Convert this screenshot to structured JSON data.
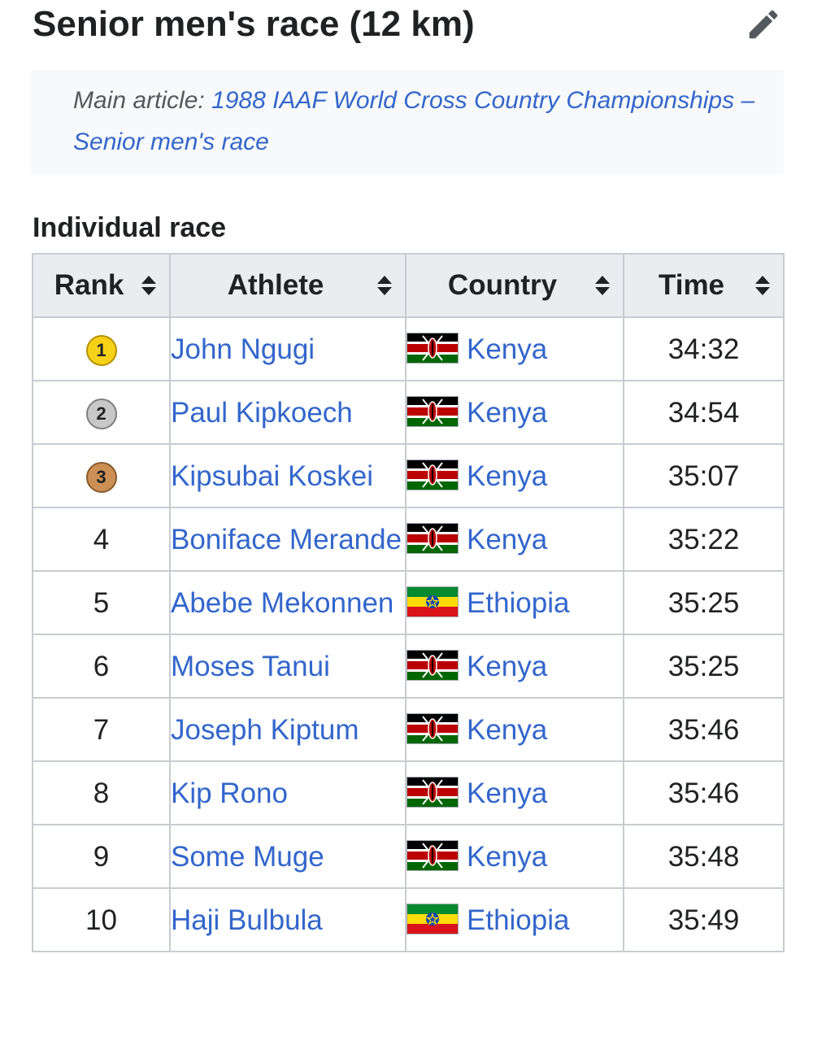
{
  "section": {
    "title": "Senior men's race (12 km)",
    "edit_icon": "pencil-icon"
  },
  "hatnote": {
    "prefix": "Main article:",
    "link_text": "1988 IAAF World Cross Country Championships – Senior men's race"
  },
  "subsection": {
    "title": "Individual race"
  },
  "table": {
    "columns": [
      "Rank",
      "Athlete",
      "Country",
      "Time"
    ],
    "sort_icon": "sort-updown-icon",
    "rows": [
      {
        "rank": "1",
        "medal": "gold",
        "athlete": "John Ngugi",
        "country": "Kenya",
        "flag": "kenya-flag-icon",
        "time": "34:32"
      },
      {
        "rank": "2",
        "medal": "silver",
        "athlete": "Paul Kipkoech",
        "country": "Kenya",
        "flag": "kenya-flag-icon",
        "time": "34:54"
      },
      {
        "rank": "3",
        "medal": "bronze",
        "athlete": "Kipsubai Koskei",
        "country": "Kenya",
        "flag": "kenya-flag-icon",
        "time": "35:07"
      },
      {
        "rank": "4",
        "medal": "",
        "athlete": "Boniface Merande",
        "country": "Kenya",
        "flag": "kenya-flag-icon",
        "time": "35:22"
      },
      {
        "rank": "5",
        "medal": "",
        "athlete": "Abebe Mekonnen",
        "country": "Ethiopia",
        "flag": "ethiopia-flag-icon",
        "time": "35:25"
      },
      {
        "rank": "6",
        "medal": "",
        "athlete": "Moses Tanui",
        "country": "Kenya",
        "flag": "kenya-flag-icon",
        "time": "35:25"
      },
      {
        "rank": "7",
        "medal": "",
        "athlete": "Joseph Kiptum",
        "country": "Kenya",
        "flag": "kenya-flag-icon",
        "time": "35:46"
      },
      {
        "rank": "8",
        "medal": "",
        "athlete": "Kip Rono",
        "country": "Kenya",
        "flag": "kenya-flag-icon",
        "time": "35:46"
      },
      {
        "rank": "9",
        "medal": "",
        "athlete": "Some Muge",
        "country": "Kenya",
        "flag": "kenya-flag-icon",
        "time": "35:48"
      },
      {
        "rank": "10",
        "medal": "",
        "athlete": "Haji Bulbula",
        "country": "Ethiopia",
        "flag": "ethiopia-flag-icon",
        "time": "35:49"
      }
    ]
  },
  "colors": {
    "link": "#3366cc",
    "header_bg": "#eaecf0",
    "hatnote_bg": "#f8f9fa",
    "border": "#c8ccd1",
    "gold": "#f7d117",
    "silver": "#c8c8c8",
    "bronze": "#cc9055"
  }
}
